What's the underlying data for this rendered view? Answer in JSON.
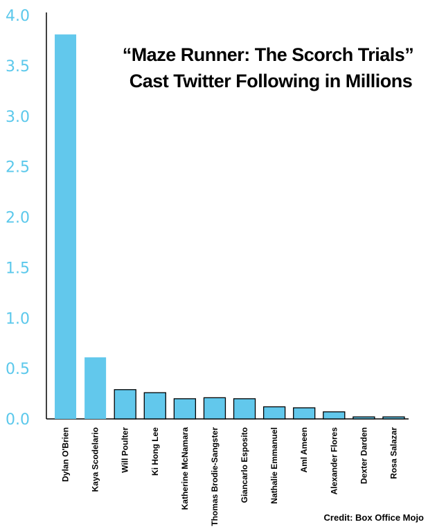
{
  "chart_data": {
    "type": "bar",
    "title_lines": [
      "“Maze Runner: The Scorch Trials”",
      "Cast Twitter Following in Millions"
    ],
    "credit": "Credit: Box Office Mojo",
    "categories": [
      "Dylan O'Brien",
      "Kaya Scodelario",
      "Will Poulter",
      "Ki Hong Lee",
      "Katherine McNamara",
      "Thomas Brodie-Sangster",
      "Giancarlo Esposito",
      "Nathalie Emmanuel",
      "Aml Ameen",
      "Alexander Flores",
      "Dexter Darden",
      "Rosa Salazar"
    ],
    "values": [
      3.81,
      0.61,
      0.29,
      0.26,
      0.2,
      0.21,
      0.2,
      0.12,
      0.11,
      0.07,
      0.02,
      0.02
    ],
    "ylim": [
      0,
      4.0
    ],
    "yticks": [
      "0.0",
      "0.5",
      "1.0",
      "1.5",
      "2.0",
      "2.5",
      "3.0",
      "3.5",
      "4.0"
    ],
    "colors": {
      "highlight": "#62c8ec",
      "bar": "#62c8ec",
      "bar_outline": "#000000",
      "tick_text": "#5bc8eb"
    }
  }
}
